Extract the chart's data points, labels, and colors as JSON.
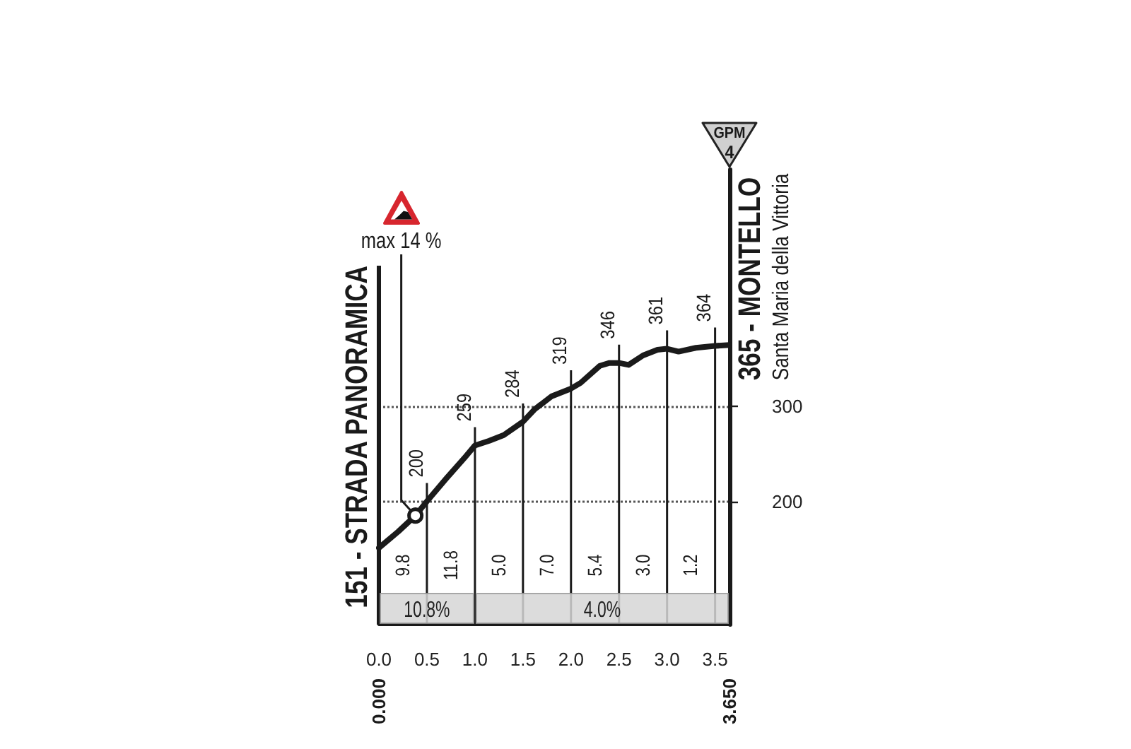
{
  "chart_data": {
    "type": "line",
    "x": [
      0,
      0.2,
      0.38,
      0.5,
      0.7,
      0.9,
      1,
      1.15,
      1.3,
      1.5,
      1.62,
      1.8,
      2,
      2.1,
      2.3,
      2.4,
      2.5,
      2.6,
      2.75,
      2.9,
      3,
      3.12,
      3.3,
      3.5,
      3.65
    ],
    "values": [
      151,
      168,
      185,
      200,
      224,
      247,
      259,
      264,
      270,
      284,
      297,
      311,
      319,
      325,
      343,
      346,
      346,
      344,
      354,
      360,
      361,
      358,
      362,
      364,
      365
    ],
    "value_labels": [
      null,
      null,
      null,
      "200",
      null,
      null,
      "259",
      null,
      null,
      "284",
      null,
      null,
      "319",
      null,
      null,
      null,
      "346",
      null,
      null,
      null,
      "361",
      null,
      null,
      "364",
      null
    ],
    "color": "#1a1a1a",
    "xlim": [
      0,
      3.65
    ],
    "xticks": [
      {
        "value": 0,
        "label": "0.0"
      },
      0.5,
      {
        "value": 1,
        "label": "1.0"
      },
      1.5,
      {
        "value": 2,
        "label": "2.0"
      },
      2.5,
      {
        "value": 3,
        "label": "3.0"
      },
      3.5
    ],
    "x2lim": [
      0,
      3.65
    ],
    "x2ticks": [
      {
        "value": 0,
        "label": "0.000"
      },
      {
        "value": 3.65,
        "label": "3.650"
      }
    ],
    "ylim": [
      70,
      550
    ],
    "yticks": [
      200,
      300
    ],
    "grid": "y",
    "bands": [
      {
        "axis": "x",
        "from": 0,
        "to": 1,
        "label": "10.8%",
        "color": "#d6d6d6"
      },
      {
        "axis": "x",
        "from": 1,
        "to": 3.65,
        "label": "4.0%",
        "color": "#d6d6d6"
      }
    ],
    "annotations": [
      {
        "text": "151 - STRADA PANORAMICA",
        "x": 0,
        "y": 151
      },
      {
        "text": "365 - MONTELLO",
        "x": 3.65,
        "y": 365
      },
      {
        "text": "Santa Maria della Vittoria",
        "x": 3.65,
        "y": 365
      },
      {
        "text": "max 14 %",
        "x": 0.38,
        "y": 185
      },
      "9.8",
      "11.8",
      "5.0",
      "7.0",
      "5.4",
      "3.0",
      "1.2",
      "GPM",
      "4"
    ]
  }
}
